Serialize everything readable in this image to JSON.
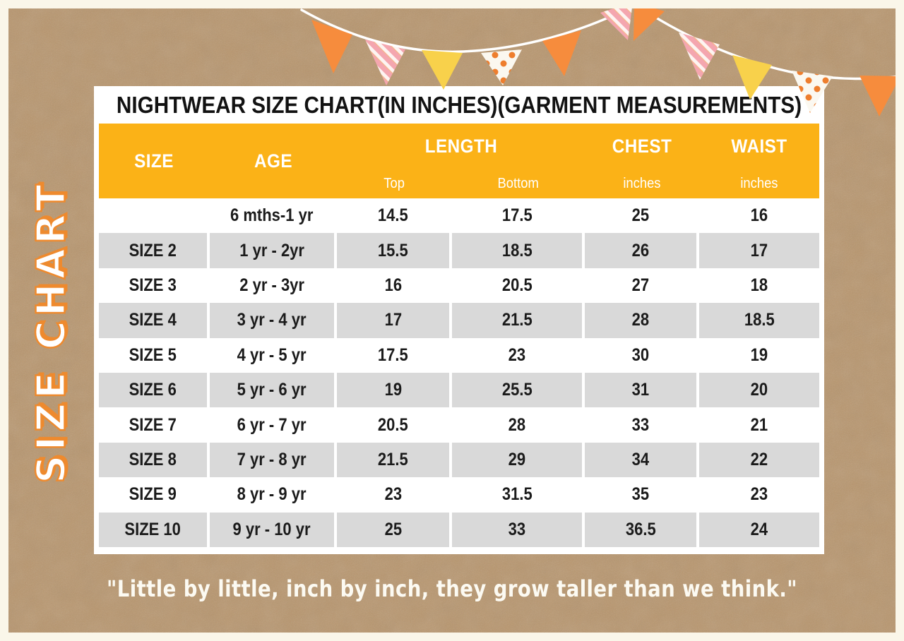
{
  "colors": {
    "kraft": "#B8956C",
    "border_cream": "#FAF6E9",
    "card_bg": "#FFFFFF",
    "header_yellow": "#FBB217",
    "row_gray": "#D9D9D9",
    "cell_text": "#1B1B1B",
    "accent_orange": "#EE8A2E",
    "flag_orange": "#F68C3D",
    "flag_yellow": "#F8D14B",
    "flag_pink": "#F4A6AF",
    "dot_orange": "#EE7E2E",
    "string_white": "#FFFFFF",
    "quote_white": "#FCFAF2"
  },
  "side_label": "SIZE CHART",
  "quote": "\"Little by little, inch by inch, they grow taller than we think.\"",
  "decor": {
    "bunting_flags": [
      "orange",
      "pink-striped",
      "yellow",
      "white-dotted",
      "orange",
      "pink-striped",
      "orange",
      "pink-striped",
      "yellow",
      "white-dotted",
      "orange"
    ]
  },
  "chart_data": {
    "type": "table",
    "title": "NIGHTWEAR SIZE CHART(IN INCHES)(GARMENT MEASUREMENTS)",
    "units": "inches",
    "header": {
      "size": "SIZE",
      "age": "AGE",
      "length": "LENGTH",
      "length_sub": [
        "Top",
        "Bottom"
      ],
      "chest": "CHEST",
      "chest_sub": "inches",
      "waist": "WAIST",
      "waist_sub": "inches"
    },
    "columns": [
      "SIZE",
      "AGE",
      "LENGTH Top",
      "LENGTH Bottom",
      "CHEST inches",
      "WAIST inches"
    ],
    "rows": [
      [
        "",
        "6 mths-1 yr",
        "14.5",
        "17.5",
        "25",
        "16"
      ],
      [
        "SIZE 2",
        "1 yr - 2yr",
        "15.5",
        "18.5",
        "26",
        "17"
      ],
      [
        "SIZE 3",
        "2 yr - 3yr",
        "16",
        "20.5",
        "27",
        "18"
      ],
      [
        "SIZE 4",
        "3 yr - 4 yr",
        "17",
        "21.5",
        "28",
        "18.5"
      ],
      [
        "SIZE 5",
        "4 yr - 5 yr",
        "17.5",
        "23",
        "30",
        "19"
      ],
      [
        "SIZE 6",
        "5 yr - 6 yr",
        "19",
        "25.5",
        "31",
        "20"
      ],
      [
        "SIZE 7",
        "6 yr - 7 yr",
        "20.5",
        "28",
        "33",
        "21"
      ],
      [
        "SIZE 8",
        "7 yr - 8 yr",
        "21.5",
        "29",
        "34",
        "22"
      ],
      [
        "SIZE 9",
        "8 yr - 9 yr",
        "23",
        "31.5",
        "35",
        "23"
      ],
      [
        "SIZE 10",
        "9 yr - 10 yr",
        "25",
        "33",
        "36.5",
        "24"
      ]
    ]
  }
}
